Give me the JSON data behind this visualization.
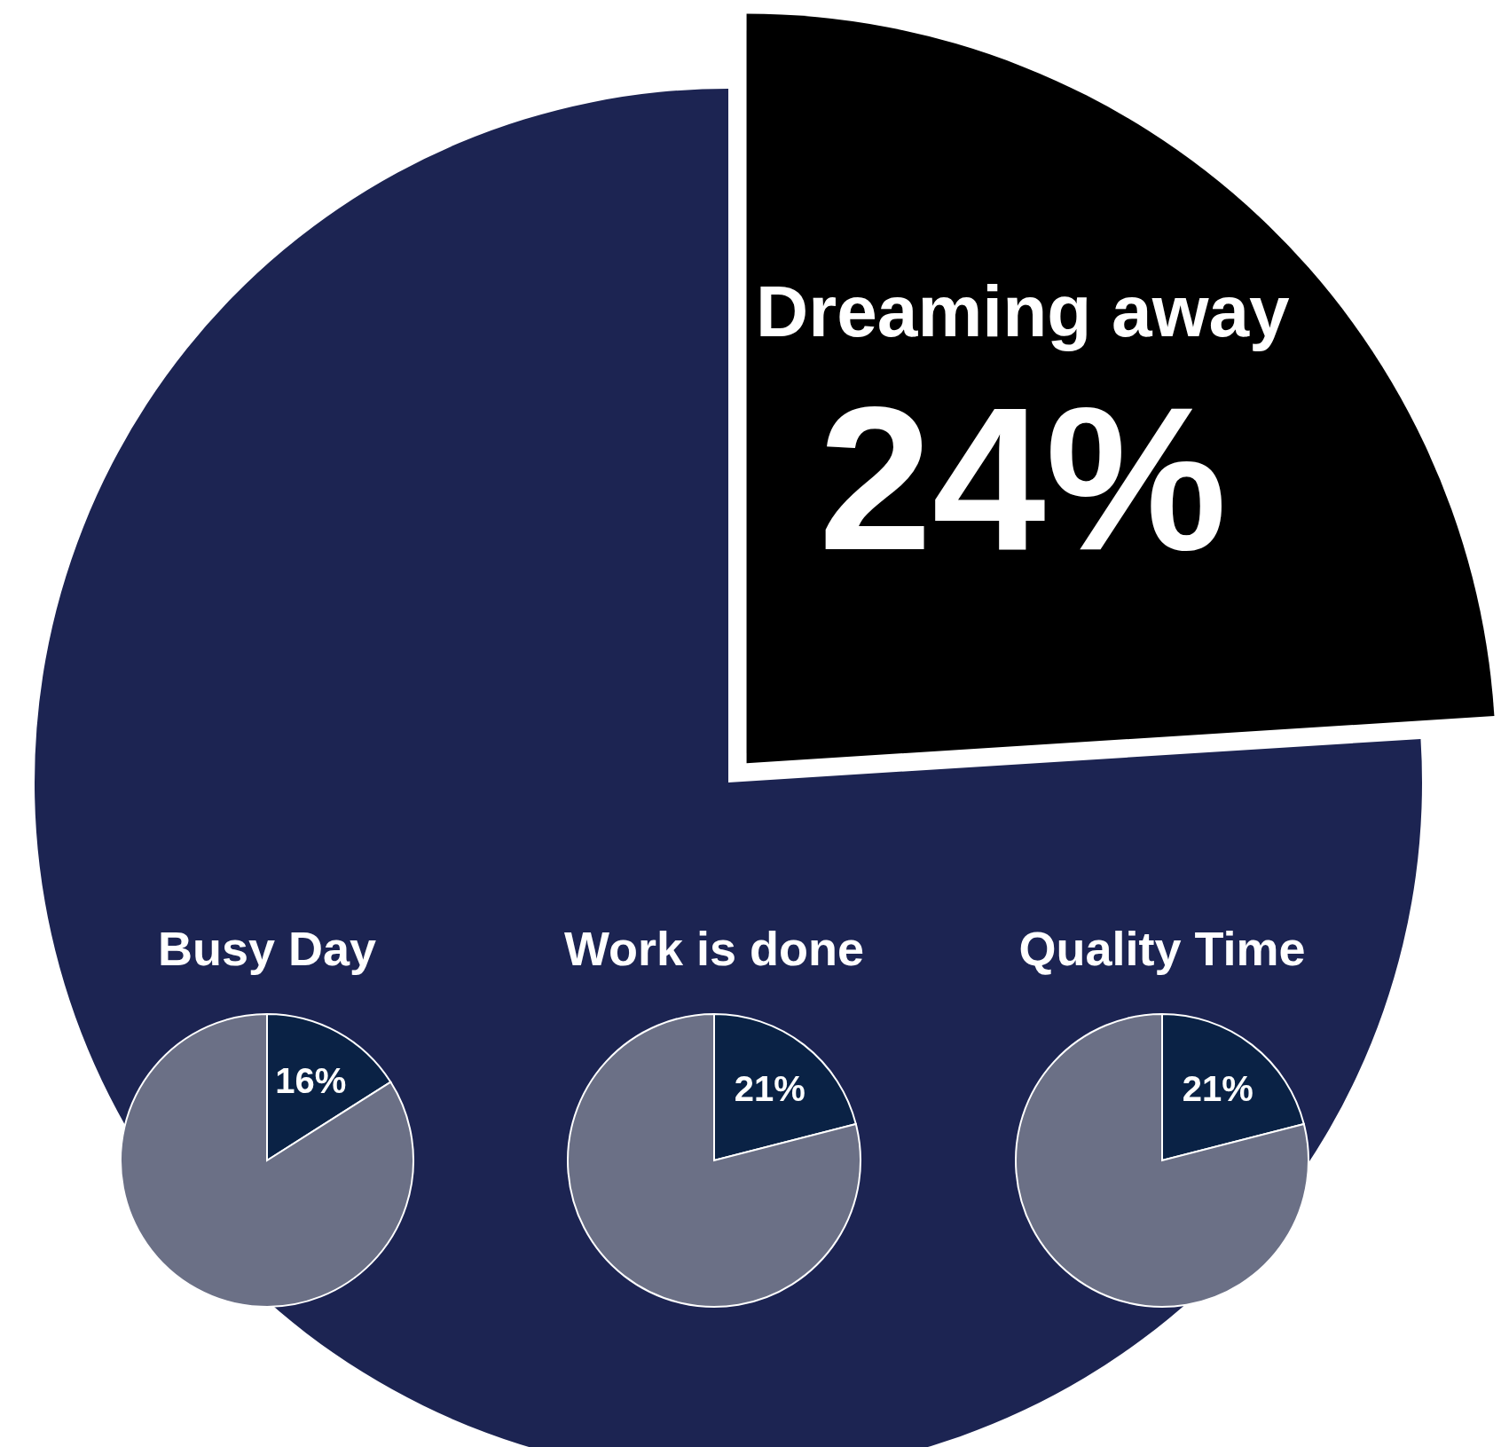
{
  "chart_data": [
    {
      "type": "pie",
      "categories": [
        "Dreaming away",
        null
      ],
      "values": [
        24,
        76
      ],
      "colors": [
        "#000000",
        "#1c2452"
      ],
      "value_labels": [
        "24%",
        null
      ]
    },
    {
      "type": "pie",
      "title": "Busy Day",
      "categories": [
        null,
        null
      ],
      "values": [
        16,
        84
      ],
      "colors": [
        "#0a2245",
        "#6b7086"
      ],
      "value_labels": [
        "16%",
        null
      ]
    },
    {
      "type": "pie",
      "title": "Work is done",
      "categories": [
        null,
        null
      ],
      "values": [
        21,
        79
      ],
      "colors": [
        "#0a2245",
        "#6b7086"
      ],
      "value_labels": [
        "21%",
        null
      ]
    },
    {
      "type": "pie",
      "title": "Quality Time",
      "categories": [
        null,
        null
      ],
      "values": [
        21,
        79
      ],
      "colors": [
        "#0a2245",
        "#6b7086"
      ],
      "value_labels": [
        "21%",
        null
      ]
    }
  ]
}
